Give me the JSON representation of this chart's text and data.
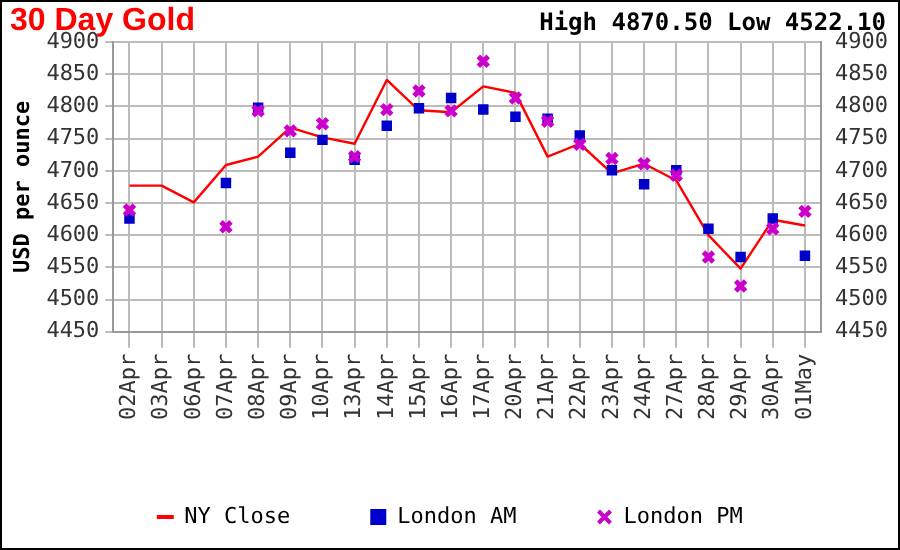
{
  "chart_data": {
    "type": "line",
    "title": "30 Day Gold",
    "annotations": [
      "High 4870.50 Low 4522.10"
    ],
    "ylabel": "USD per ounce",
    "categories": [
      "02Apr",
      "03Apr",
      "06Apr",
      "07Apr",
      "08Apr",
      "09Apr",
      "10Apr",
      "13Apr",
      "14Apr",
      "15Apr",
      "16Apr",
      "17Apr",
      "20Apr",
      "21Apr",
      "22Apr",
      "23Apr",
      "24Apr",
      "27Apr",
      "28Apr",
      "29Apr",
      "30Apr",
      "01May"
    ],
    "series": [
      {
        "name": "NY Close",
        "color": "#ff0000",
        "marker": "none",
        "values": [
          4677,
          4677,
          4651,
          4709,
          4722,
          4767,
          4752,
          4742,
          4841,
          4794,
          4791,
          4831,
          4821,
          4722,
          4742,
          4696,
          4711,
          4685,
          4600,
          4548,
          4624,
          4615
        ]
      },
      {
        "name": "London AM",
        "type": "scatter",
        "color": "#0000cc",
        "marker": "square",
        "values": [
          4626,
          null,
          null,
          4681,
          4798,
          4728,
          4748,
          4717,
          4770,
          4797,
          4813,
          4795,
          4784,
          4781,
          4755,
          4701,
          4679,
          4701,
          4610,
          4566,
          4626,
          4568
        ]
      },
      {
        "name": "London PM",
        "type": "scatter",
        "color": "#cc00cc",
        "marker": "cross",
        "values": [
          4639,
          null,
          null,
          4613,
          4793,
          4762,
          4773,
          4722,
          4795,
          4824,
          4793,
          4870,
          4813,
          4777,
          4741,
          4719,
          4711,
          4693,
          4566,
          4521,
          4610,
          4637
        ]
      }
    ],
    "ylim": [
      4450,
      4900
    ],
    "yticks": [
      4450,
      4500,
      4550,
      4600,
      4650,
      4700,
      4750,
      4800,
      4850,
      4900
    ],
    "y2lim": [
      4450,
      4900
    ],
    "y2ticks": [
      4450,
      4500,
      4550,
      4600,
      4650,
      4700,
      4750,
      4800,
      4850,
      4900
    ],
    "grid": true,
    "legend": "bottom"
  }
}
